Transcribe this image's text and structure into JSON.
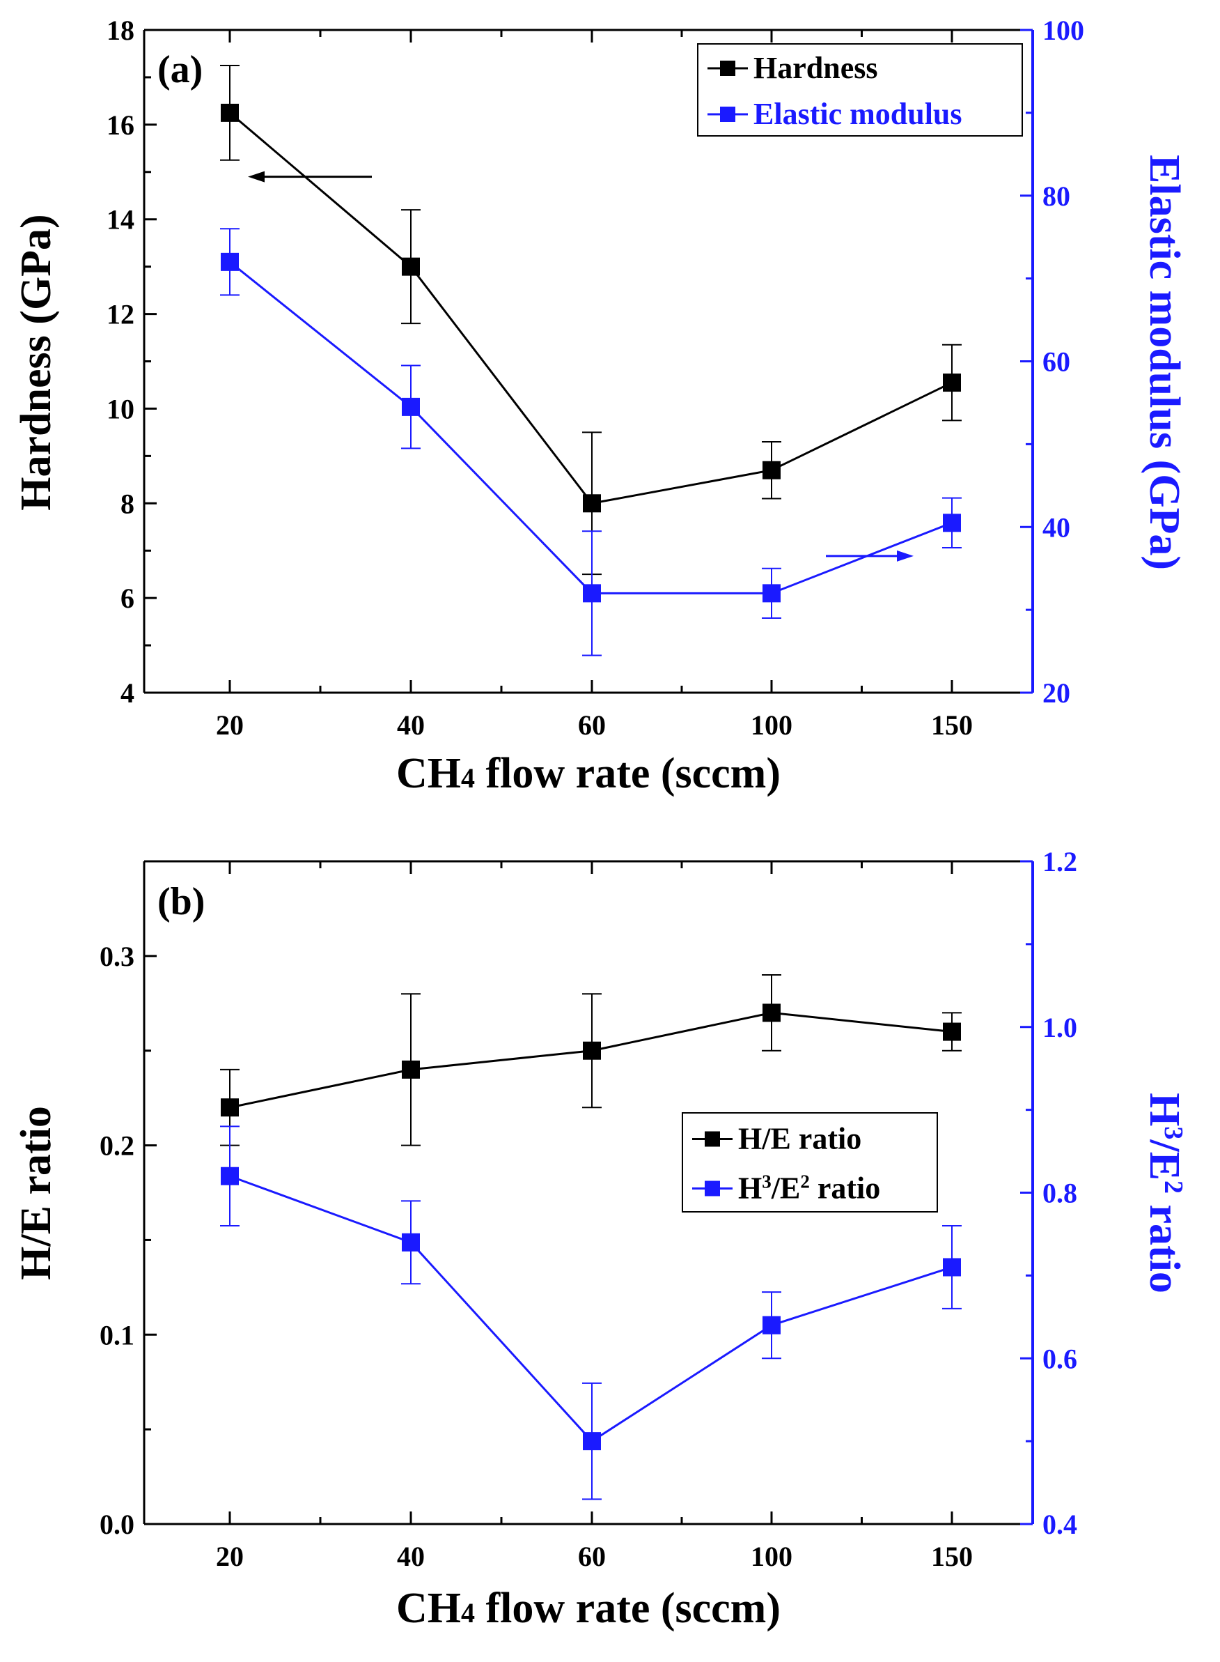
{
  "colors": {
    "black": "#000000",
    "blue": "#1a1aff"
  },
  "chart_data": [
    {
      "type": "line",
      "panel_label": "(a)",
      "x_categories": [
        "20",
        "40",
        "60",
        "100",
        "150"
      ],
      "xlabel": {
        "prefix": "CH",
        "subscript": "4",
        "suffix": " flow rate (sccm)"
      },
      "ylabel_left": "Hardness (GPa)",
      "ylabel_right": "Elastic modulus (GPa)",
      "ylim_left": [
        4,
        18
      ],
      "ylim_right": [
        20,
        100
      ],
      "yticks_left": [
        "4",
        "6",
        "8",
        "10",
        "12",
        "14",
        "16",
        "18"
      ],
      "yticks_right": [
        "20",
        "40",
        "60",
        "80",
        "100"
      ],
      "series": [
        {
          "name": "Hardness",
          "axis": "left",
          "color": "#000000",
          "values": [
            16.25,
            13.0,
            8.0,
            8.7,
            10.55
          ],
          "errors": [
            1.0,
            1.2,
            1.5,
            0.6,
            0.8
          ]
        },
        {
          "name": "Elastic modulus",
          "axis": "right",
          "color": "#1a1aff",
          "values": [
            72.0,
            54.5,
            32.0,
            32.0,
            40.5
          ],
          "errors": [
            4.0,
            5.0,
            7.5,
            3.0,
            3.0
          ]
        }
      ],
      "legend": {
        "position": "top-right",
        "entries": [
          "Hardness",
          "Elastic modulus"
        ]
      }
    },
    {
      "type": "line",
      "panel_label": "(b)",
      "x_categories": [
        "20",
        "40",
        "60",
        "100",
        "150"
      ],
      "xlabel": {
        "prefix": "CH",
        "subscript": "4",
        "suffix": " flow rate (sccm)"
      },
      "ylabel_left": "H/E ratio",
      "ylabel_right": {
        "H": "H",
        "sup1": "3",
        "slash": "/E",
        "sup2": "2",
        "suffix": " ratio"
      },
      "ylim_left": [
        0.0,
        0.35
      ],
      "ylim_right": [
        0.4,
        1.2
      ],
      "yticks_left": [
        "0.0",
        "0.1",
        "0.2",
        "0.3"
      ],
      "yticks_right": [
        "0.4",
        "0.6",
        "0.8",
        "1.0",
        "1.2"
      ],
      "series": [
        {
          "name": "H/E ratio",
          "axis": "left",
          "color": "#000000",
          "values": [
            0.22,
            0.24,
            0.25,
            0.27,
            0.26
          ],
          "errors": [
            0.02,
            0.04,
            0.03,
            0.02,
            0.01
          ]
        },
        {
          "name": "H3/E2 ratio",
          "axis": "right",
          "color": "#1a1aff",
          "values": [
            0.82,
            0.74,
            0.5,
            0.64,
            0.71
          ],
          "errors": [
            0.06,
            0.05,
            0.07,
            0.04,
            0.05
          ]
        }
      ],
      "legend": {
        "position": "center-right",
        "entries": [
          "H/E ratio",
          {
            "H": "H",
            "sup1": "3",
            "slash": "/E",
            "sup2": "2",
            "suffix": " ratio"
          }
        ]
      }
    }
  ]
}
